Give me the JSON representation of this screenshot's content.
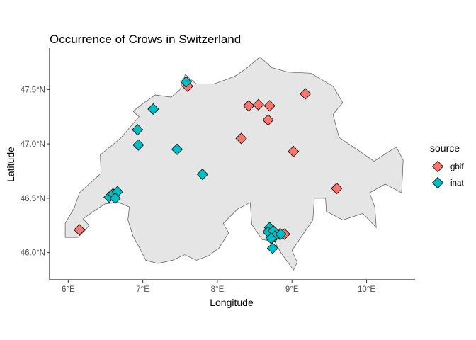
{
  "chart_data": {
    "type": "scatter",
    "title": "Occurrence of Crows in Switzerland",
    "xlabel": "Longitude",
    "ylabel": "Latitude",
    "xlim": [
      5.75,
      10.65
    ],
    "ylim": [
      45.75,
      47.88
    ],
    "x_ticks": [
      6,
      7,
      8,
      9,
      10
    ],
    "x_tick_labels": [
      "6°E",
      "7°E",
      "8°E",
      "9°E",
      "10°E"
    ],
    "y_ticks": [
      46.0,
      46.5,
      47.0,
      47.5
    ],
    "y_tick_labels": [
      "46.0°N",
      "46.5°N",
      "47.0°N",
      "47.5°N"
    ],
    "grid": false,
    "legend": {
      "title": "source",
      "position": "right"
    },
    "marker": "diamond",
    "basemap": {
      "name": "Switzerland outline",
      "fill": "#e5e5e5",
      "stroke": "#555555",
      "outline": [
        [
          5.96,
          46.14
        ],
        [
          6.13,
          46.14
        ],
        [
          6.22,
          46.2
        ],
        [
          6.28,
          46.25
        ],
        [
          6.2,
          46.31
        ],
        [
          6.32,
          46.37
        ],
        [
          6.5,
          46.45
        ],
        [
          6.68,
          46.46
        ],
        [
          6.82,
          46.42
        ],
        [
          6.8,
          46.3
        ],
        [
          6.87,
          46.15
        ],
        [
          6.95,
          46.05
        ],
        [
          7.04,
          45.93
        ],
        [
          7.2,
          45.9
        ],
        [
          7.4,
          45.93
        ],
        [
          7.56,
          45.98
        ],
        [
          7.72,
          45.93
        ],
        [
          7.88,
          45.97
        ],
        [
          8.02,
          46.04
        ],
        [
          8.15,
          46.18
        ],
        [
          8.08,
          46.27
        ],
        [
          8.27,
          46.4
        ],
        [
          8.44,
          46.46
        ],
        [
          8.46,
          46.26
        ],
        [
          8.6,
          46.12
        ],
        [
          8.77,
          46.1
        ],
        [
          8.85,
          46.0
        ],
        [
          9.02,
          45.84
        ],
        [
          9.07,
          45.91
        ],
        [
          9.0,
          46.02
        ],
        [
          9.15,
          46.17
        ],
        [
          9.28,
          46.3
        ],
        [
          9.3,
          46.5
        ],
        [
          9.45,
          46.5
        ],
        [
          9.46,
          46.38
        ],
        [
          9.68,
          46.3
        ],
        [
          9.95,
          46.36
        ],
        [
          10.13,
          46.23
        ],
        [
          10.11,
          46.42
        ],
        [
          10.04,
          46.55
        ],
        [
          10.25,
          46.63
        ],
        [
          10.47,
          46.55
        ],
        [
          10.49,
          46.85
        ],
        [
          10.4,
          46.97
        ],
        [
          10.3,
          46.93
        ],
        [
          10.1,
          46.84
        ],
        [
          9.89,
          46.94
        ],
        [
          9.63,
          47.06
        ],
        [
          9.55,
          47.27
        ],
        [
          9.68,
          47.38
        ],
        [
          9.55,
          47.53
        ],
        [
          9.25,
          47.65
        ],
        [
          8.95,
          47.66
        ],
        [
          8.73,
          47.7
        ],
        [
          8.57,
          47.8
        ],
        [
          8.4,
          47.7
        ],
        [
          8.23,
          47.62
        ],
        [
          7.95,
          47.55
        ],
        [
          7.72,
          47.55
        ],
        [
          7.63,
          47.6
        ],
        [
          7.57,
          47.64
        ],
        [
          7.5,
          47.5
        ],
        [
          7.38,
          47.43
        ],
        [
          7.17,
          47.45
        ],
        [
          7.0,
          47.37
        ],
        [
          6.87,
          47.3
        ],
        [
          6.95,
          47.25
        ],
        [
          6.7,
          47.05
        ],
        [
          6.43,
          46.9
        ],
        [
          6.44,
          46.73
        ],
        [
          6.15,
          46.55
        ],
        [
          6.08,
          46.41
        ],
        [
          5.96,
          46.27
        ]
      ]
    },
    "series": [
      {
        "name": "gbif",
        "color": "#f8766d",
        "points": [
          [
            6.15,
            46.21
          ],
          [
            7.6,
            47.53
          ],
          [
            8.32,
            47.05
          ],
          [
            8.42,
            47.35
          ],
          [
            8.55,
            47.36
          ],
          [
            8.7,
            47.35
          ],
          [
            8.68,
            47.22
          ],
          [
            9.18,
            47.46
          ],
          [
            9.02,
            46.93
          ],
          [
            9.6,
            46.59
          ],
          [
            8.83,
            46.17
          ],
          [
            8.9,
            46.17
          ]
        ]
      },
      {
        "name": "inat",
        "color": "#00bfc4",
        "points": [
          [
            7.58,
            47.57
          ],
          [
            7.14,
            47.32
          ],
          [
            6.93,
            47.13
          ],
          [
            6.94,
            46.99
          ],
          [
            7.46,
            46.95
          ],
          [
            7.8,
            46.72
          ],
          [
            6.55,
            46.51
          ],
          [
            6.6,
            46.54
          ],
          [
            6.66,
            46.56
          ],
          [
            6.63,
            46.5
          ],
          [
            8.7,
            46.23
          ],
          [
            8.68,
            46.19
          ],
          [
            8.75,
            46.2
          ],
          [
            8.77,
            46.15
          ],
          [
            8.85,
            46.17
          ],
          [
            8.72,
            46.13
          ],
          [
            8.74,
            46.04
          ]
        ]
      }
    ]
  }
}
